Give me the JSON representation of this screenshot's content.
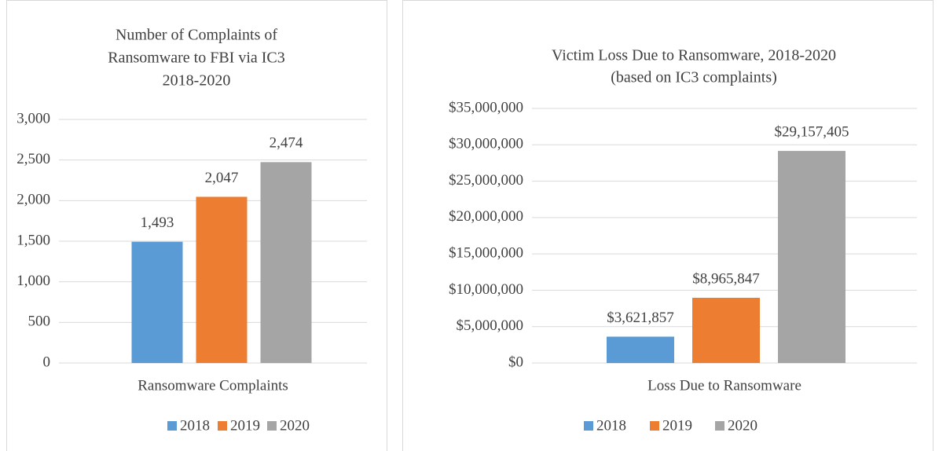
{
  "chart_data": [
    {
      "type": "bar",
      "title": [
        "Number of Complaints of",
        "Ransomware to FBI via IC3",
        "2018-2020"
      ],
      "categories": [
        "Ransomware Complaints"
      ],
      "series": [
        {
          "name": "2018",
          "color": "#5b9bd5",
          "values": [
            1493
          ],
          "value_labels": [
            "1,493"
          ]
        },
        {
          "name": "2019",
          "color": "#ed7d31",
          "values": [
            2047
          ],
          "value_labels": [
            "2,047"
          ]
        },
        {
          "name": "2020",
          "color": "#a5a5a5",
          "values": [
            2474
          ],
          "value_labels": [
            "2,474"
          ]
        }
      ],
      "ylim": [
        0,
        3000
      ],
      "yticks": [
        0,
        500,
        {
          "value": 1000,
          "label": "1,000"
        },
        {
          "value": 1500,
          "label": "1,500"
        },
        {
          "value": 2000,
          "label": "2,000"
        },
        {
          "value": 2500,
          "label": "2,500"
        },
        {
          "value": 3000,
          "label": "3,000"
        }
      ],
      "grid": true,
      "legend": "bottom"
    },
    {
      "type": "bar",
      "title": [
        "Victim Loss Due to Ransomware, 2018-2020",
        "(based on IC3 complaints)"
      ],
      "categories": [
        "Loss Due to Ransomware"
      ],
      "series": [
        {
          "name": "2018",
          "color": "#5b9bd5",
          "values": [
            3621857
          ],
          "value_labels": [
            "$3,621,857"
          ]
        },
        {
          "name": "2019",
          "color": "#ed7d31",
          "values": [
            8965847
          ],
          "value_labels": [
            "$8,965,847"
          ]
        },
        {
          "name": "2020",
          "color": "#a5a5a5",
          "values": [
            29157405
          ],
          "value_labels": [
            "$29,157,405"
          ]
        }
      ],
      "ylim": [
        0,
        35000000
      ],
      "yticks": [
        {
          "value": 0,
          "label": "$0"
        },
        {
          "value": 5000000,
          "label": "$5,000,000"
        },
        {
          "value": 10000000,
          "label": "$10,000,000"
        },
        {
          "value": 15000000,
          "label": "$15,000,000"
        },
        {
          "value": 20000000,
          "label": "$20,000,000"
        },
        {
          "value": 25000000,
          "label": "$25,000,000"
        },
        {
          "value": 30000000,
          "label": "$30,000,000"
        },
        {
          "value": 35000000,
          "label": "$35,000,000"
        }
      ],
      "grid": true,
      "legend": "bottom"
    }
  ]
}
